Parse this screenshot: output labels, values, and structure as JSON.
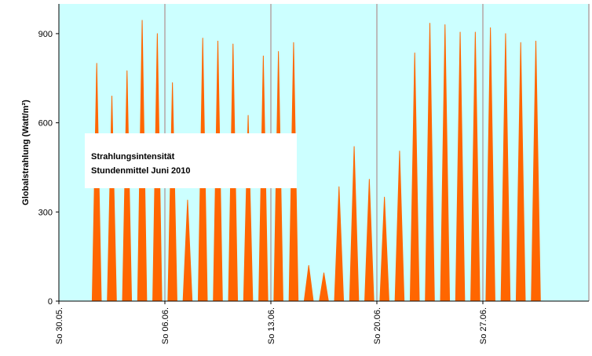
{
  "chart_data": {
    "type": "area",
    "title": "Strahlungsintensität",
    "subtitle": "Stundenmittel Juni 2010",
    "y_label": "Globalstrahlung (Watt/m²)",
    "color": "#ff6600",
    "background": "#ccffff",
    "grid": true,
    "xlim": [
      0,
      35
    ],
    "xticks": [
      {
        "value": 0,
        "label": "So 30.05."
      },
      {
        "value": 7,
        "label": "So 06.06."
      },
      {
        "value": 14,
        "label": "So 13.06."
      },
      {
        "value": 21,
        "label": "So 20.06."
      },
      {
        "value": 28,
        "label": "So 27.06."
      }
    ],
    "ylim": [
      0,
      1000
    ],
    "yticks": [
      0,
      300,
      600,
      900
    ],
    "x": [
      2.2,
      2.5,
      2.8,
      3.2,
      3.5,
      3.8,
      4.2,
      4.5,
      4.8,
      5.2,
      5.5,
      5.8,
      6.2,
      6.5,
      6.8,
      7.2,
      7.5,
      7.8,
      8.2,
      8.5,
      8.8,
      9.2,
      9.5,
      9.8,
      10.2,
      10.5,
      10.8,
      11.2,
      11.5,
      11.8,
      12.2,
      12.5,
      12.8,
      13.2,
      13.5,
      13.8,
      14.2,
      14.5,
      14.8,
      15.2,
      15.5,
      15.8,
      16.2,
      16.5,
      16.8,
      17.2,
      17.5,
      17.8,
      18.2,
      18.5,
      18.8,
      19.2,
      19.5,
      19.8,
      20.2,
      20.5,
      20.8,
      21.2,
      21.5,
      21.8,
      22.2,
      22.5,
      22.8,
      23.2,
      23.5,
      23.8,
      24.2,
      24.5,
      24.8,
      25.2,
      25.5,
      25.8,
      26.2,
      26.5,
      26.8,
      27.2,
      27.5,
      27.8,
      28.2,
      28.5,
      28.8,
      29.2,
      29.5,
      29.8,
      30.2,
      30.5,
      30.8,
      31.2,
      31.5,
      31.8
    ],
    "values": [
      0,
      800,
      0,
      0,
      690,
      0,
      0,
      775,
      0,
      0,
      945,
      0,
      0,
      900,
      0,
      0,
      735,
      0,
      0,
      340,
      0,
      0,
      885,
      0,
      0,
      875,
      0,
      0,
      865,
      0,
      0,
      625,
      0,
      0,
      825,
      0,
      0,
      840,
      0,
      0,
      870,
      0,
      0,
      120,
      0,
      0,
      95,
      0,
      0,
      385,
      0,
      0,
      520,
      0,
      0,
      410,
      0,
      0,
      350,
      0,
      0,
      505,
      0,
      0,
      835,
      0,
      0,
      935,
      0,
      0,
      930,
      0,
      0,
      905,
      0,
      0,
      905,
      0,
      0,
      920,
      0,
      0,
      900,
      0,
      0,
      870,
      0,
      0,
      875,
      0
    ]
  }
}
